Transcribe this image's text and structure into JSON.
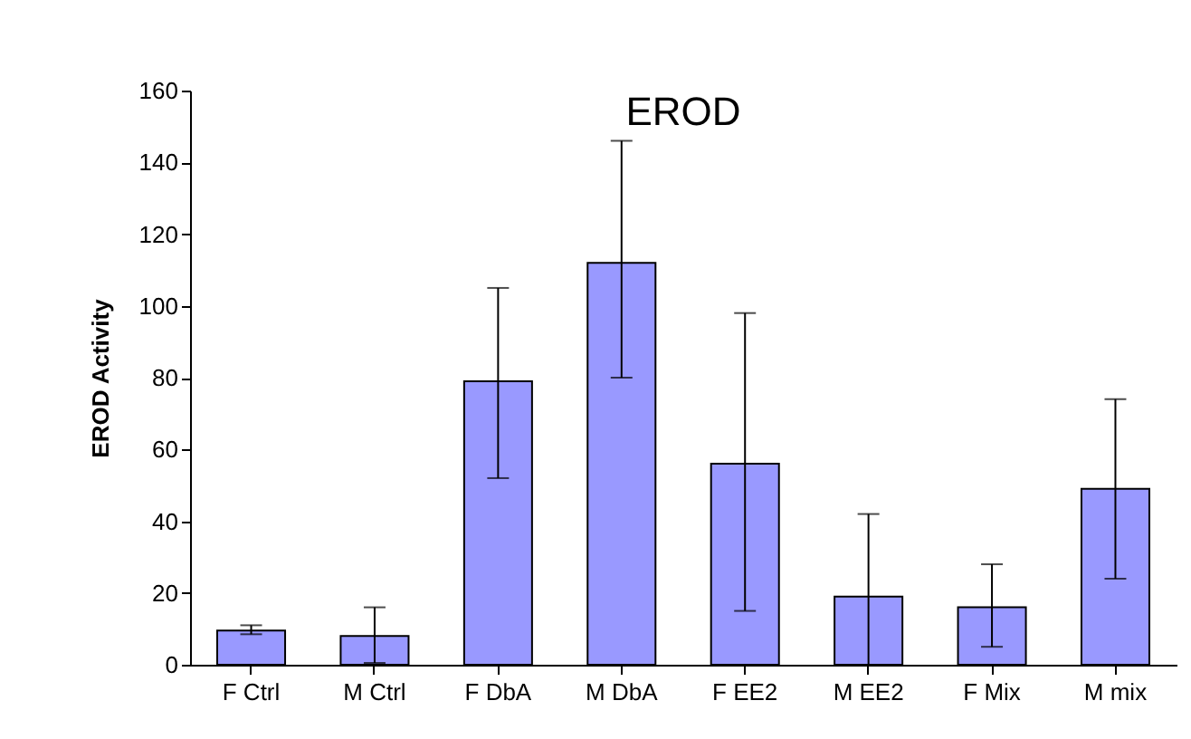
{
  "chart_data": {
    "type": "bar",
    "title": "EROD",
    "ylabel": "EROD Activity",
    "categories": [
      "F Ctrl",
      "M Ctrl",
      "F DbA",
      "M DbA",
      "F EE2",
      "M EE2",
      "F Mix",
      "M mix"
    ],
    "values": [
      9.5,
      8,
      79,
      112,
      56,
      19,
      16,
      49
    ],
    "errors": [
      [
        8.5,
        11
      ],
      [
        0.5,
        16
      ],
      [
        52,
        105
      ],
      [
        80,
        146
      ],
      [
        15,
        98
      ],
      [
        0,
        42
      ],
      [
        5,
        28
      ],
      [
        24,
        74
      ]
    ],
    "color": "#9999ff",
    "ylim": [
      0,
      160
    ],
    "yticks": [
      0,
      20,
      40,
      60,
      80,
      100,
      120,
      140,
      160
    ],
    "grid": false
  }
}
